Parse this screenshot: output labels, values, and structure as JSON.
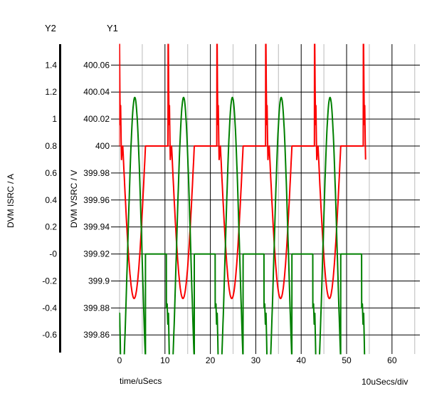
{
  "chart_data": {
    "type": "line",
    "title": "",
    "x_axis": {
      "title": "time/uSecs",
      "div_label": "10uSecs/div",
      "range": [
        0,
        66.14
      ],
      "major_ticks": [
        0,
        10,
        20,
        30,
        40,
        50,
        60
      ],
      "major_tick_labels": [
        "0",
        "10",
        "20",
        "30",
        "40",
        "50",
        "60"
      ],
      "major_gridlines": [
        10,
        20,
        30,
        40,
        50,
        60
      ],
      "minor_gridlines": [
        0,
        5,
        15,
        25,
        35,
        45,
        55,
        65
      ]
    },
    "y1_axis": {
      "name": "Y1",
      "title": "DVM VSRC / V",
      "range": [
        399.84588,
        400.07548
      ],
      "tick_values": [
        400.06,
        400.04,
        400.02,
        400.0,
        399.98,
        399.96,
        399.94,
        399.92,
        399.9,
        399.88,
        399.86
      ],
      "tick_labels": [
        "400.06",
        "400.04",
        "400.02",
        "400",
        "399.98",
        "399.96",
        "399.94",
        "399.92",
        "399.9",
        "399.88",
        "399.86"
      ]
    },
    "y2_axis": {
      "name": "Y2",
      "title": "DVM ISRC / A",
      "range": [
        -0.7412,
        1.5548
      ],
      "tick_values": [
        1.4,
        1.2,
        1.0,
        0.8,
        0.6,
        0.4,
        0.2,
        0.0,
        -0.2,
        -0.4,
        -0.6
      ],
      "tick_labels": [
        "1.4",
        "1.2",
        "1",
        "0.8",
        "0.6",
        "0.4",
        "0.2",
        "-0",
        "-0.2",
        "-0.4",
        "-0.6"
      ]
    },
    "grid": {
      "major_color": "#000000",
      "minor_color": "#c6c6c6"
    },
    "series": [
      {
        "name": "DVM VSRC",
        "unit": "V",
        "axis": "y1",
        "color": "#fb0000",
        "baseline": 400,
        "burst_starts": [
          -0.39,
          10.36,
          21.11,
          31.86,
          42.61,
          53.36
        ],
        "partial_tau": 0.85,
        "head_points": [
          [
            0,
            400
          ],
          [
            0.3,
            400
          ],
          [
            0.34,
            400.095
          ],
          [
            0.46,
            400.042
          ],
          [
            0.55,
            400.016
          ],
          [
            0.63,
            400.03
          ],
          [
            0.74,
            400.004
          ],
          [
            0.82,
            399.99
          ],
          [
            0.95,
            399.997
          ],
          [
            1.1,
            400
          ]
        ],
        "dip": {
          "start": 1.1,
          "end": 6.1,
          "depth": 0.113
        }
      },
      {
        "name": "DVM ISRC",
        "unit": "A",
        "axis": "y2",
        "color": "#008000",
        "baseline": 0,
        "burst_starts": [
          -0.45,
          10.3,
          21.05,
          31.8,
          42.55,
          53.3
        ],
        "partial_tau": 0.8,
        "head_points": [
          [
            0,
            0
          ],
          [
            0.02,
            -0.4
          ],
          [
            0.18,
            -0.37
          ],
          [
            0.32,
            -0.52
          ],
          [
            0.46,
            -0.44
          ],
          [
            0.6,
            -0.65
          ],
          [
            0.75,
            -0.95
          ]
        ],
        "sine": {
          "start": 0.95,
          "end": 6.15,
          "zero_up": 2.2,
          "period": 6.4,
          "amplitude": 1.16
        },
        "jump_tau": 6.16
      }
    ]
  }
}
